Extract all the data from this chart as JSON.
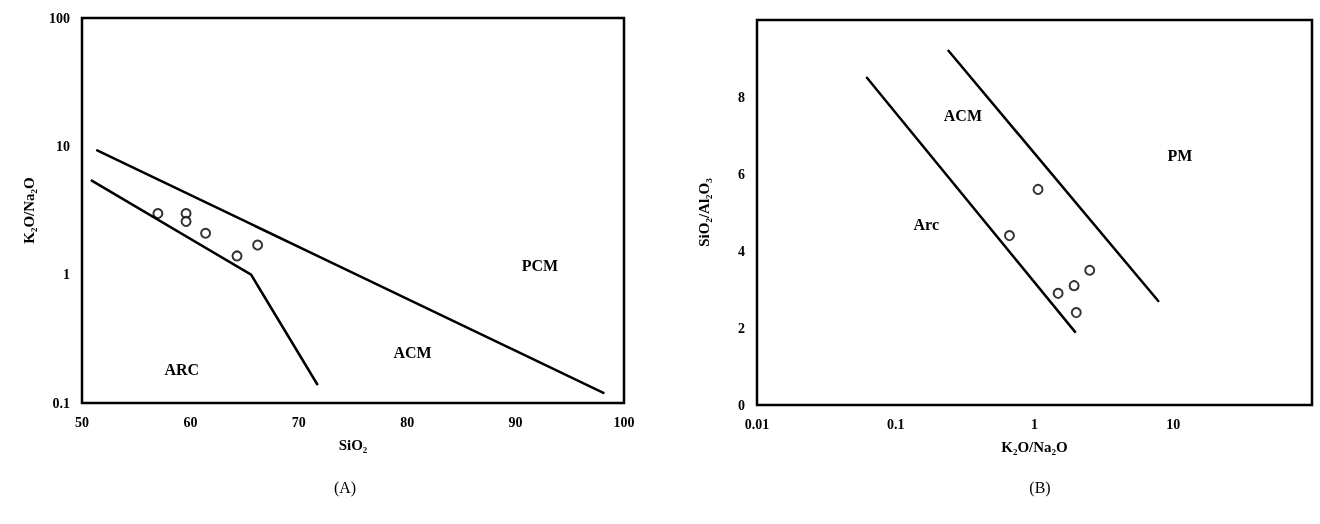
{
  "chart_data": [
    {
      "type": "scatter",
      "title": "(A)",
      "xlabel": "SiO₂",
      "ylabel": "K₂O/Na₂O",
      "xlim": [
        50,
        100
      ],
      "ylim": [
        0.1,
        100
      ],
      "xticks": [
        50,
        60,
        70,
        80,
        90,
        100
      ],
      "yticks": [
        0.1,
        1,
        10,
        100
      ],
      "log": "y",
      "grid": false,
      "marker": "circle",
      "series": [
        {
          "type": "line",
          "color": "#000000",
          "marker": "none",
          "line_style": "solid",
          "x": [
            51.4,
            98.1
          ],
          "values": [
            9.3,
            0.12
          ]
        },
        {
          "type": "line",
          "color": "#000000",
          "marker": "none",
          "line_style": "solid",
          "x": [
            50.9,
            65.6,
            71.7
          ],
          "values": [
            5.4,
            1.0,
            0.14
          ]
        },
        {
          "color": "#000000",
          "x": [
            57.0,
            59.6,
            59.6,
            61.4,
            64.3,
            66.2
          ],
          "values": [
            3.0,
            3.0,
            2.6,
            2.1,
            1.4,
            1.7
          ]
        }
      ],
      "annotations": [
        "ARC",
        "ACM",
        "PCM"
      ]
    },
    {
      "type": "scatter",
      "title": "(B)",
      "xlabel": "K₂O/Na₂O",
      "ylabel": "SiO₂/Al₂O₃",
      "xlim": [
        0.01,
        100
      ],
      "ylim": [
        0,
        10
      ],
      "xticks": [
        0.01,
        0.1,
        1,
        10
      ],
      "yticks": [
        0,
        2,
        4,
        6,
        8
      ],
      "log": "x",
      "grid": false,
      "marker": "circle",
      "series": [
        {
          "type": "line",
          "color": "#000000",
          "marker": "none",
          "line_style": "solid",
          "x": [
            0.062,
            1.96
          ],
          "values": [
            8.5,
            1.9
          ]
        },
        {
          "type": "line",
          "color": "#000000",
          "marker": "none",
          "line_style": "solid",
          "x": [
            0.24,
            7.8
          ],
          "values": [
            9.2,
            2.7
          ]
        },
        {
          "color": "#000000",
          "x": [
            1.06,
            0.66,
            1.48,
            1.93,
            2.0,
            2.5
          ],
          "values": [
            5.6,
            4.4,
            2.9,
            3.1,
            2.4,
            3.5
          ]
        }
      ],
      "annotations": [
        "ACM",
        "Arc",
        "PM"
      ]
    }
  ]
}
